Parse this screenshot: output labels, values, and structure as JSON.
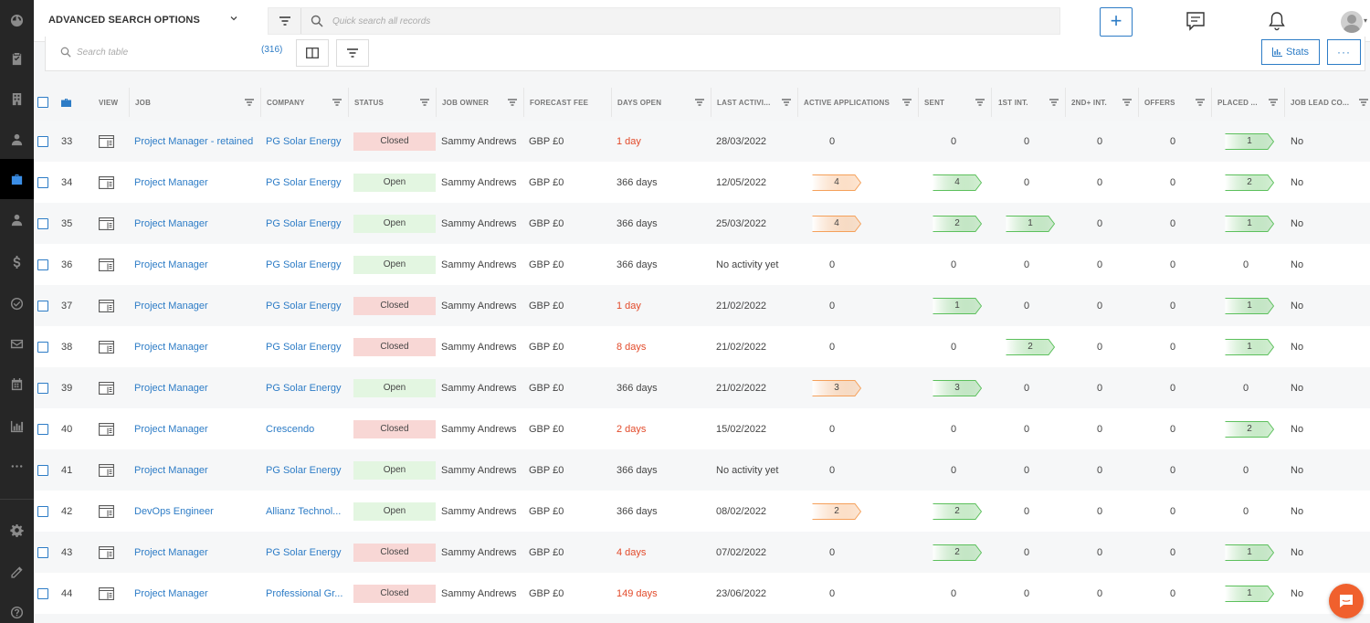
{
  "header": {
    "advanced_search_label": "ADVANCED SEARCH OPTIONS",
    "quick_search_placeholder": "Quick search all records"
  },
  "toolbar": {
    "search_placeholder": "Search table",
    "record_count": "(316)",
    "stats_label": "Stats",
    "more_label": "···"
  },
  "columns": {
    "view": "VIEW",
    "job": "JOB",
    "company": "COMPANY",
    "status": "STATUS",
    "job_owner": "JOB OWNER",
    "forecast_fee": "FORECAST FEE",
    "days_open": "DAYS OPEN",
    "last_activity": "LAST ACTIVI...",
    "active_applications": "ACTIVE APPLICATIONS",
    "sent": "SENT",
    "first_int": "1ST INT.",
    "second_int": "2ND+ INT.",
    "offers": "OFFERS",
    "placed": "PLACED ...",
    "job_lead": "JOB LEAD CO..."
  },
  "colors": {
    "accent": "#2d7cc6",
    "closed_bg": "#f8d7d5",
    "open_bg": "#e3f6e1",
    "overdue_text": "#e24a2a",
    "orange_pill": "#f5a05a",
    "green_pill": "#5cc05c",
    "chat_button": "#f0602d"
  },
  "rows": [
    {
      "id": "33",
      "job": "Project Manager - retained",
      "company": "PG Solar Energy",
      "status": "Closed",
      "owner": "Sammy Andrews",
      "fee": "GBP £0",
      "days": "1 day",
      "days_red": true,
      "last": "28/03/2022",
      "active": "0",
      "active_pill": false,
      "sent": "0",
      "sent_pill": false,
      "int1": "0",
      "int1_pill": false,
      "int2": "0",
      "offers": "0",
      "placed": "1",
      "placed_pill": true,
      "lead": "No"
    },
    {
      "id": "34",
      "job": "Project Manager",
      "company": "PG Solar Energy",
      "status": "Open",
      "owner": "Sammy Andrews",
      "fee": "GBP £0",
      "days": "366 days",
      "days_red": false,
      "last": "12/05/2022",
      "active": "4",
      "active_pill": true,
      "sent": "4",
      "sent_pill": true,
      "int1": "0",
      "int1_pill": false,
      "int2": "0",
      "offers": "0",
      "placed": "2",
      "placed_pill": true,
      "lead": "No"
    },
    {
      "id": "35",
      "job": "Project Manager",
      "company": "PG Solar Energy",
      "status": "Open",
      "owner": "Sammy Andrews",
      "fee": "GBP £0",
      "days": "366 days",
      "days_red": false,
      "last": "25/03/2022",
      "active": "4",
      "active_pill": true,
      "sent": "2",
      "sent_pill": true,
      "int1": "1",
      "int1_pill": true,
      "int2": "0",
      "offers": "0",
      "placed": "1",
      "placed_pill": true,
      "lead": "No"
    },
    {
      "id": "36",
      "job": "Project Manager",
      "company": "PG Solar Energy",
      "status": "Open",
      "owner": "Sammy Andrews",
      "fee": "GBP £0",
      "days": "366 days",
      "days_red": false,
      "last": "No activity yet",
      "active": "0",
      "active_pill": false,
      "sent": "0",
      "sent_pill": false,
      "int1": "0",
      "int1_pill": false,
      "int2": "0",
      "offers": "0",
      "placed": "0",
      "placed_pill": false,
      "lead": "No"
    },
    {
      "id": "37",
      "job": "Project Manager",
      "company": "PG Solar Energy",
      "status": "Closed",
      "owner": "Sammy Andrews",
      "fee": "GBP £0",
      "days": "1 day",
      "days_red": true,
      "last": "21/02/2022",
      "active": "0",
      "active_pill": false,
      "sent": "1",
      "sent_pill": true,
      "int1": "0",
      "int1_pill": false,
      "int2": "0",
      "offers": "0",
      "placed": "1",
      "placed_pill": true,
      "lead": "No"
    },
    {
      "id": "38",
      "job": "Project Manager",
      "company": "PG Solar Energy",
      "status": "Closed",
      "owner": "Sammy Andrews",
      "fee": "GBP £0",
      "days": "8 days",
      "days_red": true,
      "last": "21/02/2022",
      "active": "0",
      "active_pill": false,
      "sent": "0",
      "sent_pill": false,
      "int1": "2",
      "int1_pill": true,
      "int2": "0",
      "offers": "0",
      "placed": "1",
      "placed_pill": true,
      "lead": "No"
    },
    {
      "id": "39",
      "job": "Project Manager",
      "company": "PG Solar Energy",
      "status": "Open",
      "owner": "Sammy Andrews",
      "fee": "GBP £0",
      "days": "366 days",
      "days_red": false,
      "last": "21/02/2022",
      "active": "3",
      "active_pill": true,
      "sent": "3",
      "sent_pill": true,
      "int1": "0",
      "int1_pill": false,
      "int2": "0",
      "offers": "0",
      "placed": "0",
      "placed_pill": false,
      "lead": "No"
    },
    {
      "id": "40",
      "job": "Project Manager",
      "company": "Crescendo",
      "status": "Closed",
      "owner": "Sammy Andrews",
      "fee": "GBP £0",
      "days": "2 days",
      "days_red": true,
      "last": "15/02/2022",
      "active": "0",
      "active_pill": false,
      "sent": "0",
      "sent_pill": false,
      "int1": "0",
      "int1_pill": false,
      "int2": "0",
      "offers": "0",
      "placed": "2",
      "placed_pill": true,
      "lead": "No"
    },
    {
      "id": "41",
      "job": "Project Manager",
      "company": "PG Solar Energy",
      "status": "Open",
      "owner": "Sammy Andrews",
      "fee": "GBP £0",
      "days": "366 days",
      "days_red": false,
      "last": "No activity yet",
      "active": "0",
      "active_pill": false,
      "sent": "0",
      "sent_pill": false,
      "int1": "0",
      "int1_pill": false,
      "int2": "0",
      "offers": "0",
      "placed": "0",
      "placed_pill": false,
      "lead": "No"
    },
    {
      "id": "42",
      "job": "DevOps Engineer",
      "company": "Allianz Technol...",
      "status": "Open",
      "owner": "Sammy Andrews",
      "fee": "GBP £0",
      "days": "366 days",
      "days_red": false,
      "last": "08/02/2022",
      "active": "2",
      "active_pill": true,
      "sent": "2",
      "sent_pill": true,
      "int1": "0",
      "int1_pill": false,
      "int2": "0",
      "offers": "0",
      "placed": "0",
      "placed_pill": false,
      "lead": "No"
    },
    {
      "id": "43",
      "job": "Project Manager",
      "company": "PG Solar Energy",
      "status": "Closed",
      "owner": "Sammy Andrews",
      "fee": "GBP £0",
      "days": "4 days",
      "days_red": true,
      "last": "07/02/2022",
      "active": "0",
      "active_pill": false,
      "sent": "2",
      "sent_pill": true,
      "int1": "0",
      "int1_pill": false,
      "int2": "0",
      "offers": "0",
      "placed": "1",
      "placed_pill": true,
      "lead": "No"
    },
    {
      "id": "44",
      "job": "Project Manager",
      "company": "Professional Gr...",
      "status": "Closed",
      "owner": "Sammy Andrews",
      "fee": "GBP £0",
      "days": "149 days",
      "days_red": true,
      "last": "23/06/2022",
      "active": "0",
      "active_pill": false,
      "sent": "0",
      "sent_pill": false,
      "int1": "0",
      "int1_pill": false,
      "int2": "0",
      "offers": "0",
      "placed": "1",
      "placed_pill": true,
      "lead": "No"
    }
  ]
}
